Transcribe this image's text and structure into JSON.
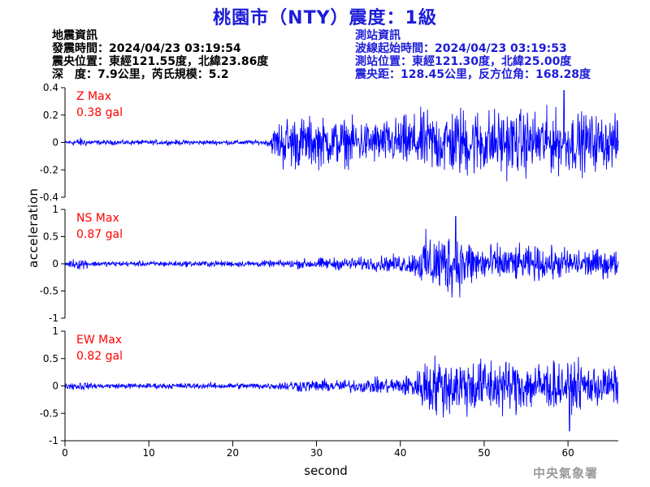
{
  "header": {
    "title": "桃園市（NTY）震度：1級"
  },
  "event_info": {
    "heading": "地震資訊",
    "origin_time": "發震時間：2024/04/23 03:19:54",
    "epicenter": "震央位置：東經121.55度，北緯23.86度",
    "depth_magnitude": "深　度：7.9公里，芮氏規模：5.2"
  },
  "station_info": {
    "heading": "測站資訊",
    "wave_start": "波線起始時間：2024/04/23 03:19:53",
    "location": "測站位置：東經121.30度，北緯25.00度",
    "distance": "震央距：128.45公里，反方位角：168.28度"
  },
  "footer": {
    "agency": "中央氣象署"
  },
  "chart_data": {
    "type": "line",
    "xlabel": "second",
    "ylabel": "acceleration",
    "x_range": [
      0,
      66
    ],
    "x_ticks": [
      0,
      10,
      20,
      30,
      40,
      50,
      60
    ],
    "line_color": "#0000ff",
    "label_color": "#ff0000",
    "panels": [
      {
        "component": "Z",
        "label": "Z Max",
        "max_value": "0.38 gal",
        "ylim": [
          -0.4,
          0.4
        ],
        "y_ticks": [
          -0.4,
          -0.2,
          0,
          0.2,
          0.4
        ],
        "envelope": [
          [
            0,
            0.012
          ],
          [
            2,
            0.03
          ],
          [
            3,
            0.015
          ],
          [
            24,
            0.015
          ],
          [
            25,
            0.09
          ],
          [
            26,
            0.17
          ],
          [
            30,
            0.15
          ],
          [
            38,
            0.13
          ],
          [
            43,
            0.19
          ],
          [
            47,
            0.22
          ],
          [
            52,
            0.2
          ],
          [
            58,
            0.19
          ],
          [
            62,
            0.18
          ],
          [
            66,
            0.15
          ]
        ],
        "peak": {
          "x": 59.5,
          "y": 0.38
        }
      },
      {
        "component": "NS",
        "label": "NS Max",
        "max_value": "0.87 gal",
        "ylim": [
          -1,
          1
        ],
        "y_ticks": [
          -1,
          -0.5,
          0,
          0.5,
          1
        ],
        "envelope": [
          [
            0,
            0.04
          ],
          [
            2,
            0.1
          ],
          [
            3,
            0.04
          ],
          [
            25,
            0.05
          ],
          [
            30,
            0.09
          ],
          [
            36,
            0.1
          ],
          [
            40,
            0.14
          ],
          [
            42,
            0.2
          ],
          [
            43,
            0.45
          ],
          [
            46,
            0.5
          ],
          [
            50,
            0.3
          ],
          [
            55,
            0.26
          ],
          [
            60,
            0.24
          ],
          [
            66,
            0.2
          ]
        ],
        "peak": {
          "x": 46.6,
          "y": 0.87
        }
      },
      {
        "component": "EW",
        "label": "EW Max",
        "max_value": "0.82 gal",
        "ylim": [
          -1,
          1
        ],
        "y_ticks": [
          -1,
          -0.5,
          0,
          0.5,
          1
        ],
        "envelope": [
          [
            0,
            0.04
          ],
          [
            2,
            0.08
          ],
          [
            3,
            0.04
          ],
          [
            25,
            0.05
          ],
          [
            27,
            0.09
          ],
          [
            35,
            0.1
          ],
          [
            40,
            0.14
          ],
          [
            42,
            0.22
          ],
          [
            43,
            0.45
          ],
          [
            47,
            0.45
          ],
          [
            52,
            0.42
          ],
          [
            58,
            0.38
          ],
          [
            63,
            0.33
          ],
          [
            66,
            0.28
          ]
        ],
        "peak": {
          "x": 60.2,
          "y": -0.82
        }
      }
    ]
  }
}
